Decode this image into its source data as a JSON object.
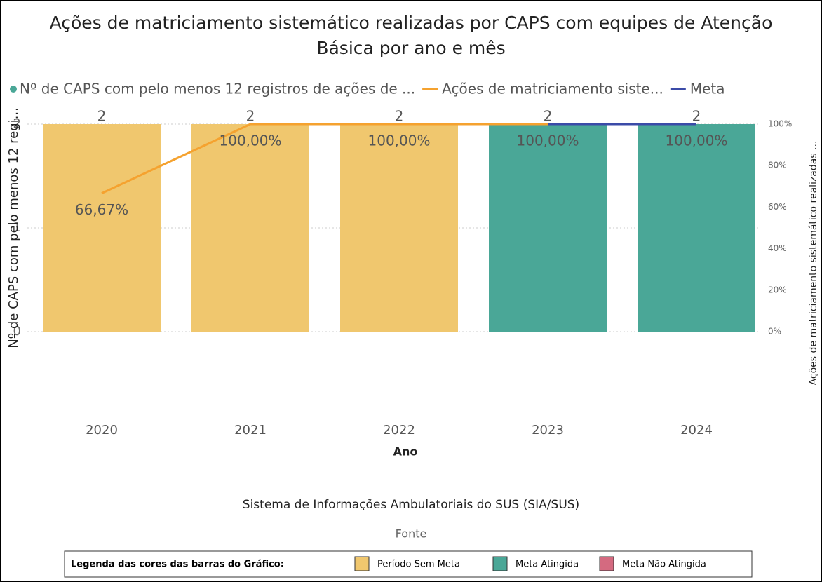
{
  "chart_data": {
    "type": "bar-line",
    "title": [
      "Ações de matriciamento sistemático realizadas por CAPS com equipes de Atenção",
      "Básica por ano e mês"
    ],
    "x_label": "Ano",
    "y_label": "Nº de CAPS com pelo menos 12 regi...",
    "y2_label": "Ações de matriciamento sistemático realizadas ...",
    "categories": [
      "2020",
      "2021",
      "2022",
      "2023",
      "2024"
    ],
    "series": [
      {
        "name": "Nº de CAPS com pelo menos 12 registros de ações de ...",
        "type": "bar",
        "color": "#4aa797",
        "colors": [
          "#f0c76e",
          "#f0c76e",
          "#f0c76e",
          "#4aa797",
          "#4aa797"
        ],
        "values": [
          2,
          2,
          2,
          2,
          2
        ]
      },
      {
        "name": "Ações de matriciamento siste...",
        "type": "line",
        "axis": "y2",
        "color": "#f5a22f",
        "values": [
          66.67,
          100,
          100,
          100,
          100
        ],
        "value_labels": [
          "66,67%",
          "100,00%",
          "100,00%",
          "100,00%",
          "100,00%"
        ]
      },
      {
        "name": "Meta",
        "type": "line",
        "axis": "y2",
        "color": "#3b4ba8",
        "values": [
          null,
          null,
          null,
          100,
          100
        ]
      }
    ],
    "ylim": [
      0,
      2
    ],
    "yticks": [
      0,
      1,
      2
    ],
    "y2lim": [
      0,
      100
    ],
    "y2ticks": [
      {
        "value": 0,
        "label": "0%"
      },
      {
        "value": 20,
        "label": "20%"
      },
      {
        "value": 40,
        "label": "40%"
      },
      {
        "value": 60,
        "label": "60%"
      },
      {
        "value": 80,
        "label": "80%"
      },
      {
        "value": 100,
        "label": "100%"
      }
    ],
    "grid": true,
    "source": "Sistema de Informações Ambulatoriais do SUS (SIA/SUS)",
    "source_label": "Fonte",
    "color_legend": {
      "title": "Legenda das cores das barras do Gráfico:",
      "items": [
        {
          "label": "Período Sem Meta",
          "color": "#f0c76e"
        },
        {
          "label": "Meta Atingida",
          "color": "#4aa797"
        },
        {
          "label": "Meta Não Atingida",
          "color": "#d46a80"
        }
      ]
    }
  }
}
